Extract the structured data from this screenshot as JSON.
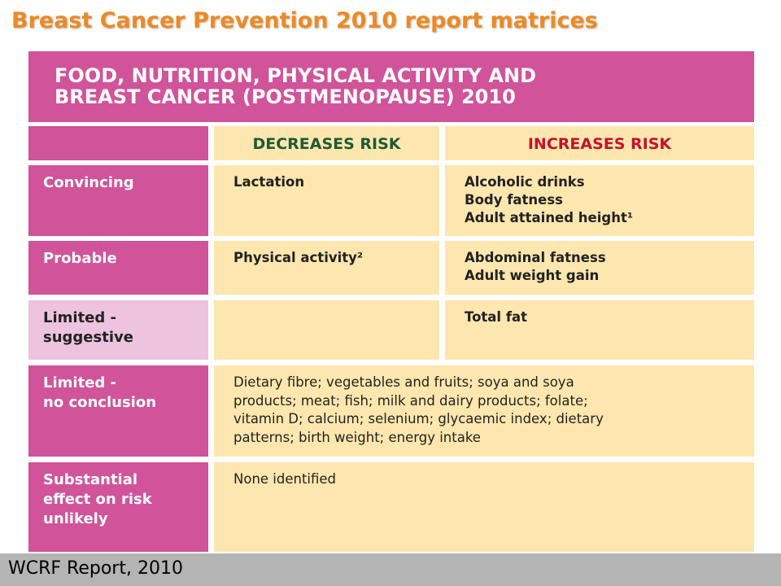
{
  "title": "Breast Cancer Prevention 2010 report matrices",
  "table": {
    "heading": [
      "FOOD, NUTRITION, PHYSICAL ACTIVITY AND",
      "BREAST CANCER (POSTMENOPAUSE) 2010"
    ],
    "columns": [
      "DECREASES RISK",
      "INCREASES RISK"
    ],
    "rows": [
      {
        "label": [
          "Convincing"
        ],
        "decreases": [
          "Lactation"
        ],
        "increases": [
          "Alcoholic drinks",
          "Body fatness",
          "Adult attained height¹"
        ]
      },
      {
        "label": [
          "Probable"
        ],
        "decreases": [
          "Physical activity²"
        ],
        "increases": [
          "Abdominal fatness",
          "Adult weight gain"
        ]
      },
      {
        "label": [
          "Limited -",
          "suggestive"
        ],
        "decreases": [],
        "increases": [
          "Total fat"
        ]
      },
      {
        "label": [
          "Limited -",
          "no conclusion"
        ],
        "combined": [
          "Dietary fibre; vegetables and fruits; soya and soya",
          "products; meat; fish; milk and dairy products; folate;",
          "vitamin D; calcium; selenium; glycaemic index; dietary",
          "patterns; birth weight; energy intake"
        ]
      },
      {
        "label": [
          "Substantial",
          "effect on risk",
          "unlikely"
        ],
        "combined": [
          "None identified"
        ]
      }
    ]
  },
  "footer": "WCRF Report, 2010"
}
